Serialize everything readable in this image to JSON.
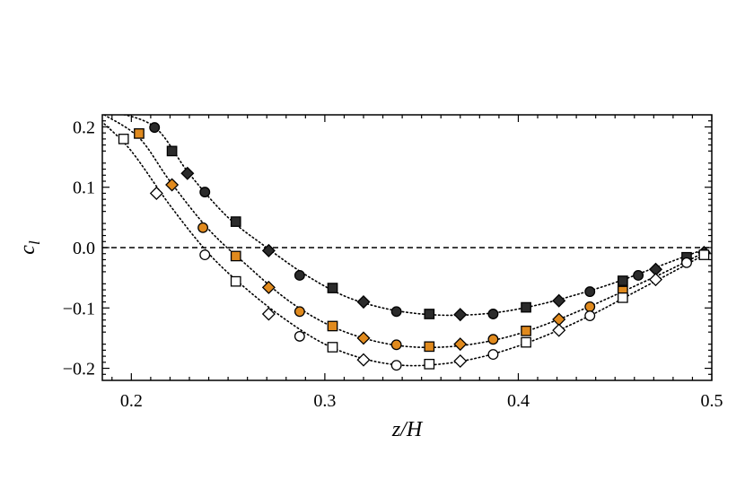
{
  "chart_data": {
    "type": "scatter",
    "title": "",
    "xlabel": "z/H",
    "ylabel": "c_l",
    "xlim": [
      0.185,
      0.5
    ],
    "ylim": [
      -0.22,
      0.22
    ],
    "xticks": [
      0.2,
      0.3,
      0.4,
      0.5
    ],
    "xtick_labels": [
      "0.2",
      "0.3",
      "0.4",
      "0.5"
    ],
    "yticks": [
      -0.2,
      -0.1,
      0.0,
      0.1,
      0.2
    ],
    "ytick_labels": [
      "−0.2",
      "−0.1",
      "0.0",
      "0.1",
      "0.2"
    ],
    "grid": false,
    "legend": "none",
    "zero_line": "dashed",
    "colors": {
      "orange": "#e08a1e",
      "dark": "#2b2b2b",
      "white": "#ffffff",
      "stroke": "#000000"
    },
    "series": [
      {
        "fill": "dark",
        "points": [
          {
            "x": 0.212,
            "y": 0.199,
            "marker": "circle"
          },
          {
            "x": 0.221,
            "y": 0.16,
            "marker": "square"
          },
          {
            "x": 0.229,
            "y": 0.123,
            "marker": "diamond"
          },
          {
            "x": 0.238,
            "y": 0.092,
            "marker": "circle"
          },
          {
            "x": 0.254,
            "y": 0.043,
            "marker": "square"
          },
          {
            "x": 0.271,
            "y": -0.005,
            "marker": "diamond"
          },
          {
            "x": 0.287,
            "y": -0.046,
            "marker": "circle"
          },
          {
            "x": 0.304,
            "y": -0.067,
            "marker": "square"
          },
          {
            "x": 0.32,
            "y": -0.09,
            "marker": "diamond"
          },
          {
            "x": 0.337,
            "y": -0.106,
            "marker": "circle"
          },
          {
            "x": 0.354,
            "y": -0.11,
            "marker": "square"
          },
          {
            "x": 0.37,
            "y": -0.111,
            "marker": "diamond"
          },
          {
            "x": 0.387,
            "y": -0.11,
            "marker": "circle"
          },
          {
            "x": 0.404,
            "y": -0.099,
            "marker": "square"
          },
          {
            "x": 0.421,
            "y": -0.088,
            "marker": "diamond"
          },
          {
            "x": 0.437,
            "y": -0.073,
            "marker": "circle"
          },
          {
            "x": 0.454,
            "y": -0.055,
            "marker": "square"
          },
          {
            "x": 0.462,
            "y": -0.046,
            "marker": "circle"
          },
          {
            "x": 0.471,
            "y": -0.036,
            "marker": "diamond"
          },
          {
            "x": 0.487,
            "y": -0.016,
            "marker": "square"
          },
          {
            "x": 0.496,
            "y": -0.008,
            "marker": "diamond"
          }
        ],
        "fit": [
          [
            0.19,
            0.225
          ],
          [
            0.212,
            0.2
          ],
          [
            0.23,
            0.122
          ],
          [
            0.25,
            0.05
          ],
          [
            0.27,
            0.0
          ],
          [
            0.29,
            -0.045
          ],
          [
            0.31,
            -0.08
          ],
          [
            0.33,
            -0.1
          ],
          [
            0.35,
            -0.11
          ],
          [
            0.37,
            -0.112
          ],
          [
            0.39,
            -0.107
          ],
          [
            0.41,
            -0.095
          ],
          [
            0.43,
            -0.078
          ],
          [
            0.45,
            -0.058
          ],
          [
            0.47,
            -0.034
          ],
          [
            0.49,
            -0.01
          ],
          [
            0.496,
            -0.003
          ]
        ]
      },
      {
        "fill": "orange",
        "points": [
          {
            "x": 0.204,
            "y": 0.189,
            "marker": "square"
          },
          {
            "x": 0.221,
            "y": 0.104,
            "marker": "diamond"
          },
          {
            "x": 0.237,
            "y": 0.033,
            "marker": "circle"
          },
          {
            "x": 0.254,
            "y": -0.014,
            "marker": "square"
          },
          {
            "x": 0.271,
            "y": -0.066,
            "marker": "diamond"
          },
          {
            "x": 0.287,
            "y": -0.106,
            "marker": "circle"
          },
          {
            "x": 0.304,
            "y": -0.13,
            "marker": "square"
          },
          {
            "x": 0.32,
            "y": -0.15,
            "marker": "diamond"
          },
          {
            "x": 0.337,
            "y": -0.161,
            "marker": "circle"
          },
          {
            "x": 0.354,
            "y": -0.164,
            "marker": "square"
          },
          {
            "x": 0.37,
            "y": -0.16,
            "marker": "diamond"
          },
          {
            "x": 0.387,
            "y": -0.152,
            "marker": "circle"
          },
          {
            "x": 0.404,
            "y": -0.138,
            "marker": "square"
          },
          {
            "x": 0.421,
            "y": -0.119,
            "marker": "diamond"
          },
          {
            "x": 0.437,
            "y": -0.098,
            "marker": "circle"
          },
          {
            "x": 0.454,
            "y": -0.072,
            "marker": "square"
          }
        ],
        "fit": [
          [
            0.186,
            0.22
          ],
          [
            0.204,
            0.182
          ],
          [
            0.22,
            0.11
          ],
          [
            0.24,
            0.03
          ],
          [
            0.26,
            -0.03
          ],
          [
            0.28,
            -0.085
          ],
          [
            0.3,
            -0.125
          ],
          [
            0.32,
            -0.15
          ],
          [
            0.34,
            -0.163
          ],
          [
            0.36,
            -0.165
          ],
          [
            0.38,
            -0.158
          ],
          [
            0.4,
            -0.143
          ],
          [
            0.42,
            -0.12
          ],
          [
            0.44,
            -0.093
          ],
          [
            0.46,
            -0.064
          ],
          [
            0.48,
            -0.034
          ],
          [
            0.496,
            -0.008
          ]
        ]
      },
      {
        "fill": "white",
        "points": [
          {
            "x": 0.196,
            "y": 0.18,
            "marker": "square"
          },
          {
            "x": 0.213,
            "y": 0.09,
            "marker": "diamond"
          },
          {
            "x": 0.238,
            "y": -0.012,
            "marker": "circle"
          },
          {
            "x": 0.254,
            "y": -0.056,
            "marker": "square"
          },
          {
            "x": 0.271,
            "y": -0.11,
            "marker": "diamond"
          },
          {
            "x": 0.287,
            "y": -0.147,
            "marker": "circle"
          },
          {
            "x": 0.304,
            "y": -0.165,
            "marker": "square"
          },
          {
            "x": 0.32,
            "y": -0.186,
            "marker": "diamond"
          },
          {
            "x": 0.337,
            "y": -0.195,
            "marker": "circle"
          },
          {
            "x": 0.354,
            "y": -0.193,
            "marker": "square"
          },
          {
            "x": 0.37,
            "y": -0.188,
            "marker": "diamond"
          },
          {
            "x": 0.387,
            "y": -0.177,
            "marker": "circle"
          },
          {
            "x": 0.404,
            "y": -0.157,
            "marker": "square"
          },
          {
            "x": 0.421,
            "y": -0.137,
            "marker": "diamond"
          },
          {
            "x": 0.437,
            "y": -0.113,
            "marker": "circle"
          },
          {
            "x": 0.454,
            "y": -0.083,
            "marker": "square"
          },
          {
            "x": 0.471,
            "y": -0.053,
            "marker": "diamond"
          },
          {
            "x": 0.487,
            "y": -0.025,
            "marker": "circle"
          },
          {
            "x": 0.496,
            "y": -0.012,
            "marker": "square"
          }
        ],
        "fit": [
          [
            0.186,
            0.205
          ],
          [
            0.2,
            0.16
          ],
          [
            0.22,
            0.07
          ],
          [
            0.24,
            -0.01
          ],
          [
            0.26,
            -0.07
          ],
          [
            0.28,
            -0.12
          ],
          [
            0.3,
            -0.16
          ],
          [
            0.32,
            -0.184
          ],
          [
            0.34,
            -0.195
          ],
          [
            0.36,
            -0.193
          ],
          [
            0.38,
            -0.182
          ],
          [
            0.4,
            -0.163
          ],
          [
            0.42,
            -0.138
          ],
          [
            0.44,
            -0.108
          ],
          [
            0.46,
            -0.074
          ],
          [
            0.48,
            -0.04
          ],
          [
            0.496,
            -0.012
          ]
        ]
      }
    ]
  }
}
